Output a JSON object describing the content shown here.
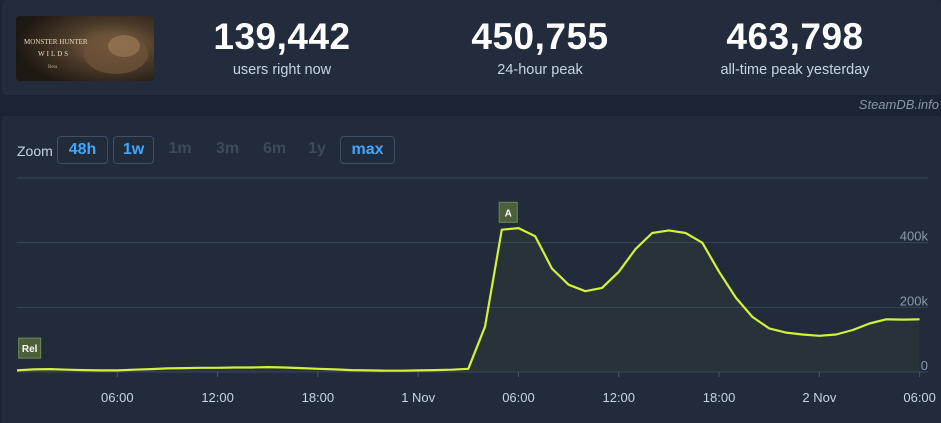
{
  "game": {
    "title": "MONSTER HUNTER",
    "subtitle": "WILDS",
    "tag": "Beta"
  },
  "stats": [
    {
      "value": "139,442",
      "label": "users right now"
    },
    {
      "value": "450,755",
      "label": "24-hour peak"
    },
    {
      "value": "463,798",
      "label": "all-time peak yesterday"
    }
  ],
  "brand": "SteamDB.info",
  "zoom": {
    "label": "Zoom",
    "buttons": [
      {
        "label": "48h",
        "state": "active"
      },
      {
        "label": "1w",
        "state": "active"
      },
      {
        "label": "1m",
        "state": "disabled"
      },
      {
        "label": "3m",
        "state": "disabled"
      },
      {
        "label": "6m",
        "state": "disabled"
      },
      {
        "label": "1y",
        "state": "disabled"
      },
      {
        "label": "max",
        "state": "active"
      }
    ]
  },
  "colors": {
    "line": "#d2f23a",
    "accent": "#3fa7ff",
    "flag": "#4a5f3a"
  },
  "chart_data": {
    "type": "line",
    "title": "",
    "xlabel": "",
    "ylabel": "",
    "x_ticks": [
      "06:00",
      "12:00",
      "18:00",
      "1 Nov",
      "06:00",
      "12:00",
      "18:00",
      "2 Nov",
      "06:00"
    ],
    "y_ticks": [
      "0",
      "200k",
      "400k"
    ],
    "ylim": [
      0,
      600000
    ],
    "grid": true,
    "series": [
      {
        "x_hours": [
          -3,
          -2,
          -1,
          0,
          1,
          2,
          3,
          4,
          5,
          6,
          7,
          8,
          9,
          10,
          11,
          12,
          13,
          14,
          15,
          16,
          17,
          18,
          19,
          20,
          21,
          22,
          23,
          24,
          25,
          26,
          27,
          28,
          29,
          30,
          31,
          32,
          33,
          34,
          35,
          36,
          37,
          38,
          39,
          40,
          41,
          42,
          43,
          44,
          45,
          46,
          47,
          48,
          49,
          50,
          51
        ],
        "values": [
          5000,
          8000,
          9000,
          7000,
          6000,
          5000,
          5000,
          7000,
          9000,
          11000,
          12000,
          13000,
          13000,
          14000,
          14000,
          15000,
          14000,
          12000,
          10000,
          8000,
          6000,
          5000,
          4000,
          4000,
          5000,
          6000,
          7000,
          10000,
          140000,
          440000,
          445000,
          420000,
          320000,
          270000,
          250000,
          260000,
          310000,
          380000,
          430000,
          438000,
          430000,
          400000,
          310000,
          230000,
          170000,
          135000,
          122000,
          116000,
          112000,
          116000,
          130000,
          150000,
          163000,
          162000,
          163000
        ]
      }
    ],
    "annotations": [
      "A",
      "Rel"
    ]
  }
}
